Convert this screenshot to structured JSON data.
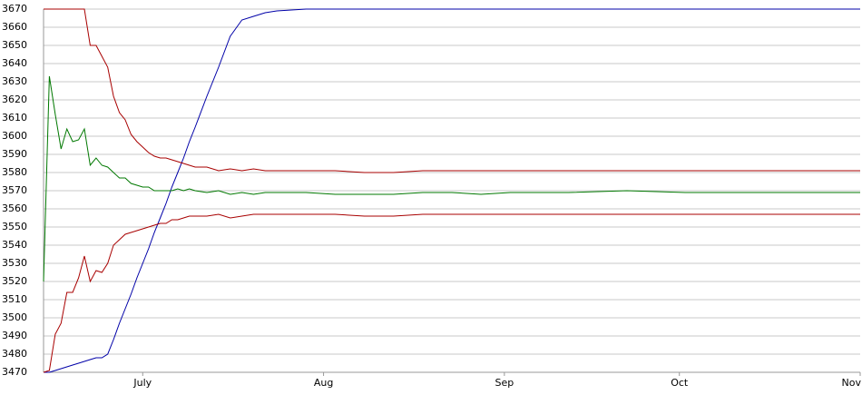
{
  "chart_data": {
    "type": "line",
    "x": [
      0,
      1,
      2,
      3,
      4,
      5,
      6,
      7,
      8,
      9,
      10,
      11,
      12,
      13,
      14,
      15,
      16,
      17,
      18,
      19,
      20,
      21,
      22,
      23,
      24,
      25,
      26,
      28,
      30,
      32,
      34,
      36,
      38,
      40,
      45,
      50,
      55,
      60,
      65,
      70,
      75,
      80,
      90,
      100,
      110,
      120,
      130,
      140
    ],
    "xlim": [
      0,
      140
    ],
    "xticks": [
      {
        "value": 17,
        "label": "July"
      },
      {
        "value": 48,
        "label": "Aug"
      },
      {
        "value": 79,
        "label": "Sep"
      },
      {
        "value": 109,
        "label": "Oct"
      },
      {
        "value": 140,
        "label": "Nov"
      }
    ],
    "ylim": [
      3470,
      3670
    ],
    "yticks": [
      3470,
      3480,
      3490,
      3500,
      3510,
      3520,
      3530,
      3540,
      3550,
      3560,
      3570,
      3580,
      3590,
      3600,
      3610,
      3620,
      3630,
      3640,
      3650,
      3660,
      3670
    ],
    "grid": true,
    "series": [
      {
        "color": "#0000a8",
        "values": [
          3470,
          3470,
          3471,
          3472,
          3473,
          3474,
          3475,
          3476,
          3477,
          3478,
          3478,
          3480,
          3488,
          3497,
          3505,
          3513,
          3522,
          3530,
          3538,
          3547,
          3555,
          3563,
          3572,
          3580,
          3588,
          3597,
          3605,
          3622,
          3638,
          3655,
          3664,
          3666,
          3668,
          3669,
          3670,
          3670,
          3670,
          3670,
          3670,
          3670,
          3670,
          3670,
          3670,
          3670,
          3670,
          3670,
          3670,
          3670
        ]
      },
      {
        "color": "#007800",
        "values": [
          3520,
          3633,
          3612,
          3593,
          3604,
          3597,
          3598,
          3604,
          3584,
          3588,
          3584,
          3583,
          3580,
          3577,
          3577,
          3574,
          3573,
          3572,
          3572,
          3570,
          3570,
          3570,
          3570,
          3571,
          3570,
          3571,
          3570,
          3569,
          3570,
          3568,
          3569,
          3568,
          3569,
          3569,
          3569,
          3568,
          3568,
          3568,
          3569,
          3569,
          3568,
          3569,
          3569,
          3570,
          3569,
          3569,
          3569,
          3569
        ]
      },
      {
        "color": "#a80000",
        "values": [
          3670,
          3670,
          3670,
          3670,
          3670,
          3670,
          3670,
          3670,
          3650,
          3650,
          3644,
          3638,
          3622,
          3613,
          3609,
          3601,
          3597,
          3594,
          3591,
          3589,
          3588,
          3588,
          3587,
          3586,
          3585,
          3584,
          3583,
          3583,
          3581,
          3582,
          3581,
          3582,
          3581,
          3581,
          3581,
          3581,
          3580,
          3580,
          3581,
          3581,
          3581,
          3581,
          3581,
          3581,
          3581,
          3581,
          3581,
          3581
        ]
      },
      {
        "color": "#a80000",
        "values": [
          3470,
          3471,
          3491,
          3497,
          3514,
          3514,
          3522,
          3534,
          3520,
          3526,
          3525,
          3530,
          3540,
          3543,
          3546,
          3547,
          3548,
          3549,
          3550,
          3551,
          3552,
          3552,
          3554,
          3554,
          3555,
          3556,
          3556,
          3556,
          3557,
          3555,
          3556,
          3557,
          3557,
          3557,
          3557,
          3557,
          3556,
          3556,
          3557,
          3557,
          3557,
          3557,
          3557,
          3557,
          3557,
          3557,
          3557,
          3557
        ]
      }
    ]
  }
}
